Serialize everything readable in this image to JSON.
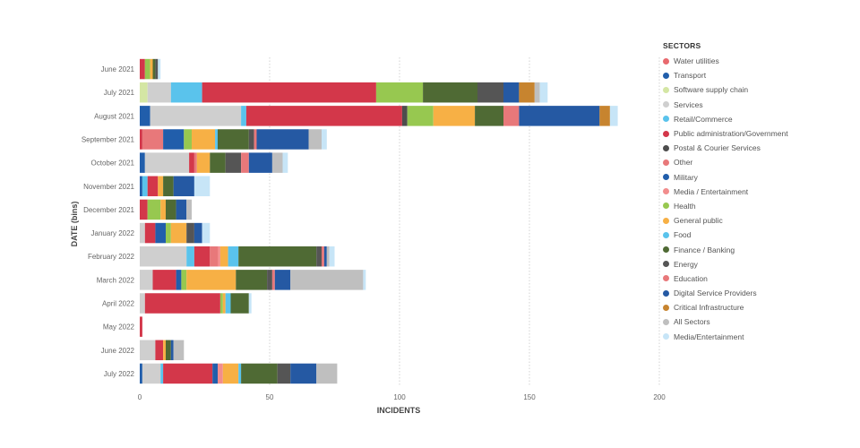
{
  "chart_data": {
    "type": "bar",
    "orientation": "horizontal",
    "stacked": true,
    "xlabel": "INCIDENTS",
    "ylabel": "DATE (bins)",
    "xlim": [
      0,
      200
    ],
    "xticks": [
      0,
      50,
      100,
      150,
      200
    ],
    "grid": "vertical dotted",
    "legend_title": "SECTORS",
    "categories": [
      "June 2021",
      "July 2021",
      "August 2021",
      "September 2021",
      "October 2021",
      "November 2021",
      "December 2021",
      "January 2022",
      "February 2022",
      "March 2022",
      "April 2022",
      "May 2022",
      "June 2022",
      "July 2022"
    ],
    "series": [
      {
        "name": "Water utilities",
        "color": "#E8696E",
        "values": [
          0,
          0,
          0,
          0,
          0,
          0,
          0,
          0,
          0,
          0,
          0,
          0,
          0,
          0
        ]
      },
      {
        "name": "Transport",
        "color": "#215EAB",
        "values": [
          0,
          0,
          4,
          0,
          2,
          1,
          0,
          0,
          0,
          0,
          0,
          0,
          0,
          1
        ]
      },
      {
        "name": "Software supply chain",
        "color": "#D4E6A4",
        "values": [
          0,
          3,
          0,
          0,
          0,
          0,
          0,
          0,
          0,
          0,
          0,
          0,
          0,
          0
        ]
      },
      {
        "name": "Services",
        "color": "#CFCFCF",
        "values": [
          0,
          9,
          35,
          0,
          17,
          0,
          0,
          2,
          18,
          5,
          2,
          0,
          6,
          7
        ]
      },
      {
        "name": "Retail/Commerce",
        "color": "#5AC3EC",
        "values": [
          0,
          12,
          2,
          0,
          0,
          2,
          0,
          0,
          3,
          0,
          0,
          0,
          0,
          1
        ]
      },
      {
        "name": "Public administration/Government",
        "color": "#D3374A",
        "values": [
          2,
          67,
          60,
          1,
          2,
          4,
          3,
          4,
          6,
          9,
          29,
          1,
          3,
          19
        ]
      },
      {
        "name": "Postal & Courier Services",
        "color": "#4D4D4D",
        "values": [
          0,
          0,
          2,
          0,
          0,
          0,
          0,
          0,
          0,
          0,
          0,
          0,
          0,
          0
        ]
      },
      {
        "name": "Other",
        "color": "#E8787A",
        "values": [
          0,
          0,
          0,
          8,
          1,
          0,
          0,
          0,
          3,
          0,
          0,
          0,
          0,
          0
        ]
      },
      {
        "name": "Military",
        "color": "#215EAB",
        "values": [
          0,
          0,
          0,
          8,
          0,
          0,
          0,
          4,
          0,
          2,
          0,
          0,
          0,
          2
        ]
      },
      {
        "name": "Media / Entertainment",
        "color": "#F28D8D",
        "values": [
          0,
          0,
          0,
          0,
          0,
          0,
          0,
          0,
          1,
          0,
          0,
          0,
          0,
          2
        ]
      },
      {
        "name": "Health",
        "color": "#97C850",
        "values": [
          2,
          18,
          10,
          3,
          0,
          0,
          5,
          2,
          0,
          2,
          1,
          0,
          0,
          0
        ]
      },
      {
        "name": "General public",
        "color": "#F7B045",
        "values": [
          1,
          0,
          16,
          9,
          5,
          2,
          2,
          6,
          3,
          19,
          1,
          0,
          1,
          6
        ]
      },
      {
        "name": "Food",
        "color": "#5AC3EC",
        "values": [
          0,
          0,
          0,
          1,
          0,
          0,
          0,
          0,
          4,
          0,
          2,
          0,
          0,
          1
        ]
      },
      {
        "name": "Finance / Banking",
        "color": "#4F6A34",
        "values": [
          1,
          21,
          11,
          12,
          6,
          4,
          4,
          0,
          30,
          12,
          7,
          0,
          2,
          14
        ]
      },
      {
        "name": "Energy",
        "color": "#555555",
        "values": [
          1,
          10,
          0,
          2,
          6,
          0,
          0,
          3,
          2,
          2,
          0,
          0,
          0,
          5
        ]
      },
      {
        "name": "Education",
        "color": "#E8787A",
        "values": [
          0,
          0,
          6,
          1,
          3,
          0,
          0,
          0,
          1,
          1,
          0,
          0,
          0,
          0
        ]
      },
      {
        "name": "Digital Service Providers",
        "color": "#2559A3",
        "values": [
          0,
          6,
          31,
          20,
          9,
          8,
          4,
          3,
          1,
          6,
          0,
          0,
          1,
          10
        ]
      },
      {
        "name": "Critical Infrastructure",
        "color": "#C7842F",
        "values": [
          0,
          6,
          4,
          0,
          0,
          0,
          0,
          0,
          0,
          0,
          0,
          0,
          0,
          0
        ]
      },
      {
        "name": "All Sectors",
        "color": "#BFBFBF",
        "values": [
          0,
          2,
          0,
          5,
          4,
          0,
          2,
          0,
          1,
          28,
          0,
          0,
          4,
          8
        ]
      },
      {
        "name": "Media/Entertainment",
        "color": "#C7E5F7",
        "values": [
          1,
          3,
          3,
          2,
          2,
          6,
          0,
          3,
          2,
          1,
          1,
          0,
          0,
          0
        ]
      }
    ]
  }
}
